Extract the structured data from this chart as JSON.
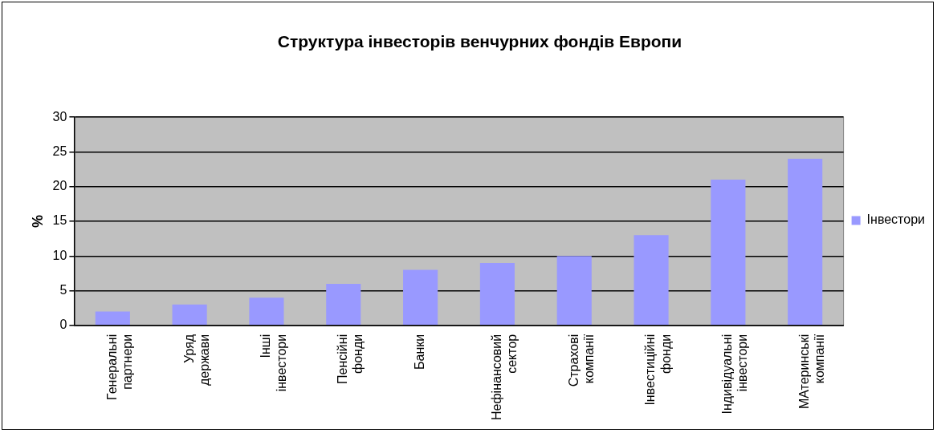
{
  "chart_data": {
    "type": "bar",
    "title": "Структура інвесторів венчурних фондів Европи",
    "ylabel": "%",
    "categories": [
      "Генеральні партнери",
      "Уряд держави",
      "Інші інвестори",
      "Пенсійні фонди",
      "Банки",
      "Нефінансовий сектор",
      "Страхові компанії",
      "Інвестиційні фонди",
      "Індивідуальні інвестори",
      "МАтеринські компанії"
    ],
    "series": [
      {
        "name": "Інвестори",
        "color": "#9999ff",
        "values": [
          2,
          3,
          4,
          6,
          8,
          9,
          10,
          13,
          21,
          24
        ]
      }
    ],
    "ylim": [
      0,
      30
    ],
    "yticks": [
      0,
      5,
      10,
      15,
      20,
      25,
      30
    ],
    "grid": "y",
    "legend": "right"
  }
}
